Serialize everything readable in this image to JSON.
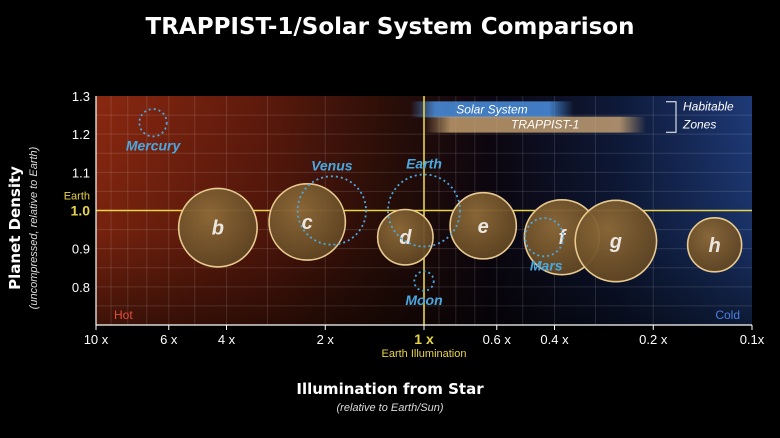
{
  "chart_data": {
    "type": "scatter",
    "title": "TRAPPIST-1/Solar System Comparison",
    "ylabel": "Planet Density",
    "ylabel_sub": "(uncompressed, relative to Earth)",
    "xlabel": "Illumination from Star",
    "xlabel_sub": "(relative to Earth/Sun)",
    "x_scale": "log",
    "x_direction": "reversed",
    "xlim": [
      10,
      0.1
    ],
    "ylim": [
      0.7,
      1.3
    ],
    "grid": true,
    "x_ticks": [
      {
        "value": 10,
        "label": "10 x"
      },
      {
        "value": 6,
        "label": "6 x"
      },
      {
        "value": 4,
        "label": "4 x"
      },
      {
        "value": 2,
        "label": "2 x"
      },
      {
        "value": 1,
        "label": "1 x"
      },
      {
        "value": 0.6,
        "label": "0.6 x"
      },
      {
        "value": 0.4,
        "label": "0.4 x"
      },
      {
        "value": 0.2,
        "label": "0.2 x"
      },
      {
        "value": 0.1,
        "label": "0.1x"
      }
    ],
    "y_ticks": [
      {
        "value": 0.8,
        "label": "0.8"
      },
      {
        "value": 0.9,
        "label": "0.9"
      },
      {
        "value": 1.0,
        "label": "1.0"
      },
      {
        "value": 1.1,
        "label": "1.1"
      },
      {
        "value": 1.2,
        "label": "1.2"
      },
      {
        "value": 1.3,
        "label": "1.3"
      }
    ],
    "earth_reference": {
      "y_label": "Earth",
      "x_sublabel": "Earth Illumination"
    },
    "region_labels": {
      "hot": "Hot",
      "cold": "Cold"
    },
    "habitable_zones": {
      "label_line1": "Habitable",
      "label_line2": "Zones",
      "bands": [
        {
          "name": "Solar System",
          "x_start": 1.1,
          "x_end": 0.35,
          "y": 1.265,
          "color": "#4a90e0"
        },
        {
          "name": "TRAPPIST-1",
          "x_start": 1.0,
          "x_end": 0.21,
          "y": 1.225,
          "color": "#d8b07a"
        }
      ]
    },
    "series": [
      {
        "name": "TRAPPIST-1",
        "style": "filled",
        "points": [
          {
            "label": "b",
            "x": 4.25,
            "y": 0.955,
            "size": 1.09
          },
          {
            "label": "c",
            "x": 2.27,
            "y": 0.97,
            "size": 1.06
          },
          {
            "label": "d",
            "x": 1.14,
            "y": 0.93,
            "size": 0.77
          },
          {
            "label": "e",
            "x": 0.66,
            "y": 0.96,
            "size": 0.92
          },
          {
            "label": "f",
            "x": 0.38,
            "y": 0.93,
            "size": 1.04
          },
          {
            "label": "g",
            "x": 0.26,
            "y": 0.92,
            "size": 1.13
          },
          {
            "label": "h",
            "x": 0.13,
            "y": 0.91,
            "size": 0.75
          }
        ]
      },
      {
        "name": "Solar System",
        "style": "dotted",
        "points": [
          {
            "label": "Mercury",
            "x": 6.7,
            "y": 1.23,
            "size": 0.38,
            "label_pos": "below"
          },
          {
            "label": "Venus",
            "x": 1.91,
            "y": 1.0,
            "size": 0.95,
            "label_pos": "above"
          },
          {
            "label": "Earth",
            "x": 1.0,
            "y": 1.0,
            "size": 1.0,
            "label_pos": "above"
          },
          {
            "label": "Mars",
            "x": 0.43,
            "y": 0.93,
            "size": 0.53,
            "label_pos": "below"
          },
          {
            "label": "Moon",
            "x": 1.0,
            "y": 0.815,
            "size": 0.27,
            "label_pos": "below"
          }
        ]
      }
    ],
    "colors": {
      "trappist_fill": "#7a5a2e",
      "trappist_stroke": "#e8c98f",
      "solar_stroke": "#4aa8e0",
      "solar_label": "#4aa8e0",
      "earth_line": "#e8d44a",
      "hot": "#e05040",
      "cold": "#4a80e0"
    }
  }
}
